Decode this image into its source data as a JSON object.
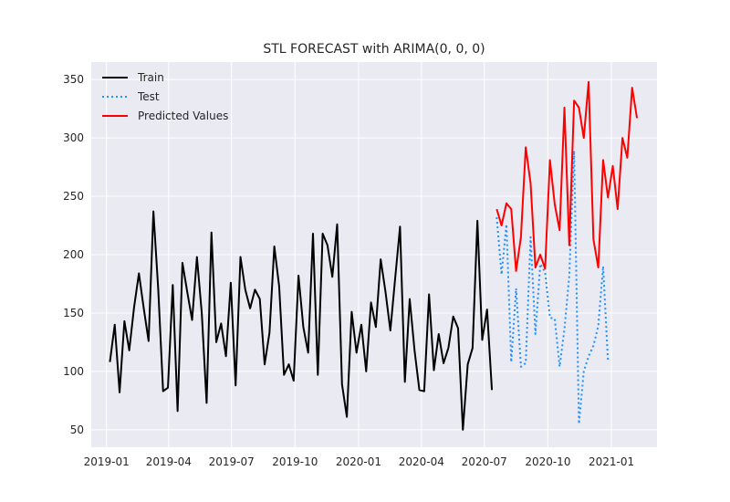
{
  "chart_data": {
    "type": "line",
    "title": "STL FORECAST with ARIMA(0, 0, 0)",
    "xlabel": "",
    "ylabel": "",
    "grid": true,
    "legend_position": "top-left",
    "x_ticks": [
      "2019-01",
      "2019-04",
      "2019-07",
      "2019-10",
      "2020-01",
      "2020-04",
      "2020-07",
      "2020-10",
      "2021-01"
    ],
    "y_ticks": [
      50,
      100,
      150,
      200,
      250,
      300,
      350
    ],
    "xlim": [
      "2018-12-10",
      "2021-03-08"
    ],
    "ylim": [
      35,
      365
    ],
    "colors": {
      "background": "#eaeaf2",
      "grid": "#ffffff",
      "train": "#000000",
      "test": "#1e90ff",
      "predicted": "#ff0000"
    },
    "series": [
      {
        "name": "Train",
        "style": "solid",
        "x": [
          "2019-01-06",
          "2019-01-13",
          "2019-01-20",
          "2019-01-27",
          "2019-02-03",
          "2019-02-10",
          "2019-02-17",
          "2019-02-24",
          "2019-03-03",
          "2019-03-10",
          "2019-03-17",
          "2019-03-24",
          "2019-03-31",
          "2019-04-07",
          "2019-04-14",
          "2019-04-21",
          "2019-04-28",
          "2019-05-05",
          "2019-05-12",
          "2019-05-19",
          "2019-05-26",
          "2019-06-02",
          "2019-06-09",
          "2019-06-16",
          "2019-06-23",
          "2019-06-30",
          "2019-07-07",
          "2019-07-14",
          "2019-07-21",
          "2019-07-28",
          "2019-08-04",
          "2019-08-11",
          "2019-08-18",
          "2019-08-25",
          "2019-09-01",
          "2019-09-08",
          "2019-09-15",
          "2019-09-22",
          "2019-09-29",
          "2019-10-06",
          "2019-10-13",
          "2019-10-20",
          "2019-10-27",
          "2019-11-03",
          "2019-11-10",
          "2019-11-17",
          "2019-11-24",
          "2019-12-01",
          "2019-12-08",
          "2019-12-15",
          "2019-12-22",
          "2019-12-29",
          "2020-01-05",
          "2020-01-12",
          "2020-01-19",
          "2020-01-26",
          "2020-02-02",
          "2020-02-09",
          "2020-02-16",
          "2020-02-23",
          "2020-03-01",
          "2020-03-08",
          "2020-03-15",
          "2020-03-22",
          "2020-03-29",
          "2020-04-05",
          "2020-04-12",
          "2020-04-19",
          "2020-04-26",
          "2020-05-03",
          "2020-05-10",
          "2020-05-17",
          "2020-05-24",
          "2020-05-31",
          "2020-06-07",
          "2020-06-14",
          "2020-06-21",
          "2020-06-28",
          "2020-07-05",
          "2020-07-12",
          "2020-07-19"
        ],
        "values": [
          108,
          140,
          82,
          143,
          118,
          155,
          184,
          154,
          126,
          237,
          170,
          83,
          86,
          174,
          66,
          193,
          168,
          144,
          198,
          150,
          73,
          219,
          125,
          141,
          113,
          176,
          88,
          198,
          170,
          154,
          170,
          162,
          106,
          133,
          207,
          173,
          97,
          106,
          92,
          182,
          138,
          116,
          218,
          97,
          218,
          208,
          181,
          226,
          89,
          61,
          151,
          116,
          140,
          100,
          159,
          138,
          196,
          168,
          135,
          180,
          224,
          91,
          162,
          118,
          84,
          83,
          166,
          101,
          132,
          107,
          120,
          147,
          137,
          50,
          106,
          120,
          229,
          127,
          153,
          84,
          null
        ]
      },
      {
        "name": "Test",
        "style": "dotted",
        "x": [
          "2020-07-19",
          "2020-07-26",
          "2020-08-02",
          "2020-08-09",
          "2020-08-16",
          "2020-08-23",
          "2020-08-30",
          "2020-09-06",
          "2020-09-13",
          "2020-09-20",
          "2020-09-27",
          "2020-10-04",
          "2020-10-11",
          "2020-10-18",
          "2020-10-25",
          "2020-11-01",
          "2020-11-08",
          "2020-11-15",
          "2020-11-22",
          "2020-11-29",
          "2020-12-06",
          "2020-12-13",
          "2020-12-20",
          "2020-12-27"
        ],
        "values": [
          232,
          183,
          226,
          108,
          171,
          104,
          107,
          215,
          132,
          192,
          185,
          146,
          145,
          104,
          136,
          182,
          289,
          55,
          100,
          113,
          122,
          139,
          190,
          109
        ]
      },
      {
        "name": "Predicted Values",
        "style": "solid",
        "x": [
          "2020-07-19",
          "2020-07-26",
          "2020-08-02",
          "2020-08-09",
          "2020-08-16",
          "2020-08-23",
          "2020-08-30",
          "2020-09-06",
          "2020-09-13",
          "2020-09-20",
          "2020-09-27",
          "2020-10-04",
          "2020-10-11",
          "2020-10-18",
          "2020-10-25",
          "2020-11-01",
          "2020-11-08",
          "2020-11-15",
          "2020-11-22",
          "2020-11-29",
          "2020-12-06",
          "2020-12-13",
          "2020-12-20",
          "2020-12-27",
          "2021-01-03",
          "2021-01-10",
          "2021-01-17",
          "2021-01-24",
          "2021-01-31",
          "2021-02-07"
        ],
        "values": [
          239,
          225,
          244,
          239,
          186,
          215,
          292,
          261,
          189,
          200,
          188,
          281,
          243,
          221,
          326,
          208,
          332,
          326,
          300,
          348,
          213,
          189,
          281,
          249,
          276,
          239,
          300,
          283,
          343,
          317
        ]
      }
    ]
  }
}
